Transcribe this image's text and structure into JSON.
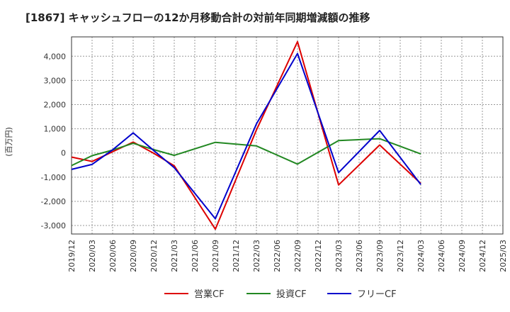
{
  "chart_data": {
    "type": "line",
    "title": "[1867]  キャッシュフローの12か月移動合計の対前年同期増減額の推移",
    "ylabel": "(百万円)",
    "xlabel": "",
    "ylim": [
      -3350,
      4800
    ],
    "yticks": [
      4000,
      3000,
      2000,
      1000,
      0,
      -1000,
      -2000,
      -3000
    ],
    "ytick_labels": [
      "4,000",
      "3,000",
      "2,000",
      "1,000",
      "0",
      "-1,000",
      "-2,000",
      "-3,000"
    ],
    "categories": [
      "2019/12",
      "2020/03",
      "2020/06",
      "2020/09",
      "2020/12",
      "2021/03",
      "2021/06",
      "2021/09",
      "2021/12",
      "2022/03",
      "2022/06",
      "2022/09",
      "2022/12",
      "2023/03",
      "2023/06",
      "2023/09",
      "2023/12",
      "2024/03",
      "2024/06",
      "2024/09",
      "2024/12",
      "2025/03"
    ],
    "grid": true,
    "legend_position": "bottom",
    "series": [
      {
        "name": "営業CF",
        "color": "#dd0000",
        "values": [
          -170,
          -350,
          50,
          450,
          -10,
          -530,
          null,
          -3150,
          null,
          950,
          null,
          4600,
          null,
          -1320,
          null,
          330,
          null,
          -1260,
          null,
          null,
          null,
          null
        ]
      },
      {
        "name": "投資CF",
        "color": "#228822",
        "values": [
          -520,
          -110,
          120,
          400,
          140,
          -100,
          null,
          440,
          null,
          290,
          null,
          -460,
          null,
          510,
          null,
          590,
          null,
          -40,
          null,
          null,
          null,
          null
        ]
      },
      {
        "name": "フリーCF",
        "color": "#0000cc",
        "values": [
          -680,
          -470,
          130,
          830,
          100,
          -610,
          null,
          -2720,
          null,
          1200,
          null,
          4110,
          null,
          -810,
          null,
          930,
          null,
          -1300,
          null,
          null,
          null,
          null
        ]
      }
    ]
  }
}
